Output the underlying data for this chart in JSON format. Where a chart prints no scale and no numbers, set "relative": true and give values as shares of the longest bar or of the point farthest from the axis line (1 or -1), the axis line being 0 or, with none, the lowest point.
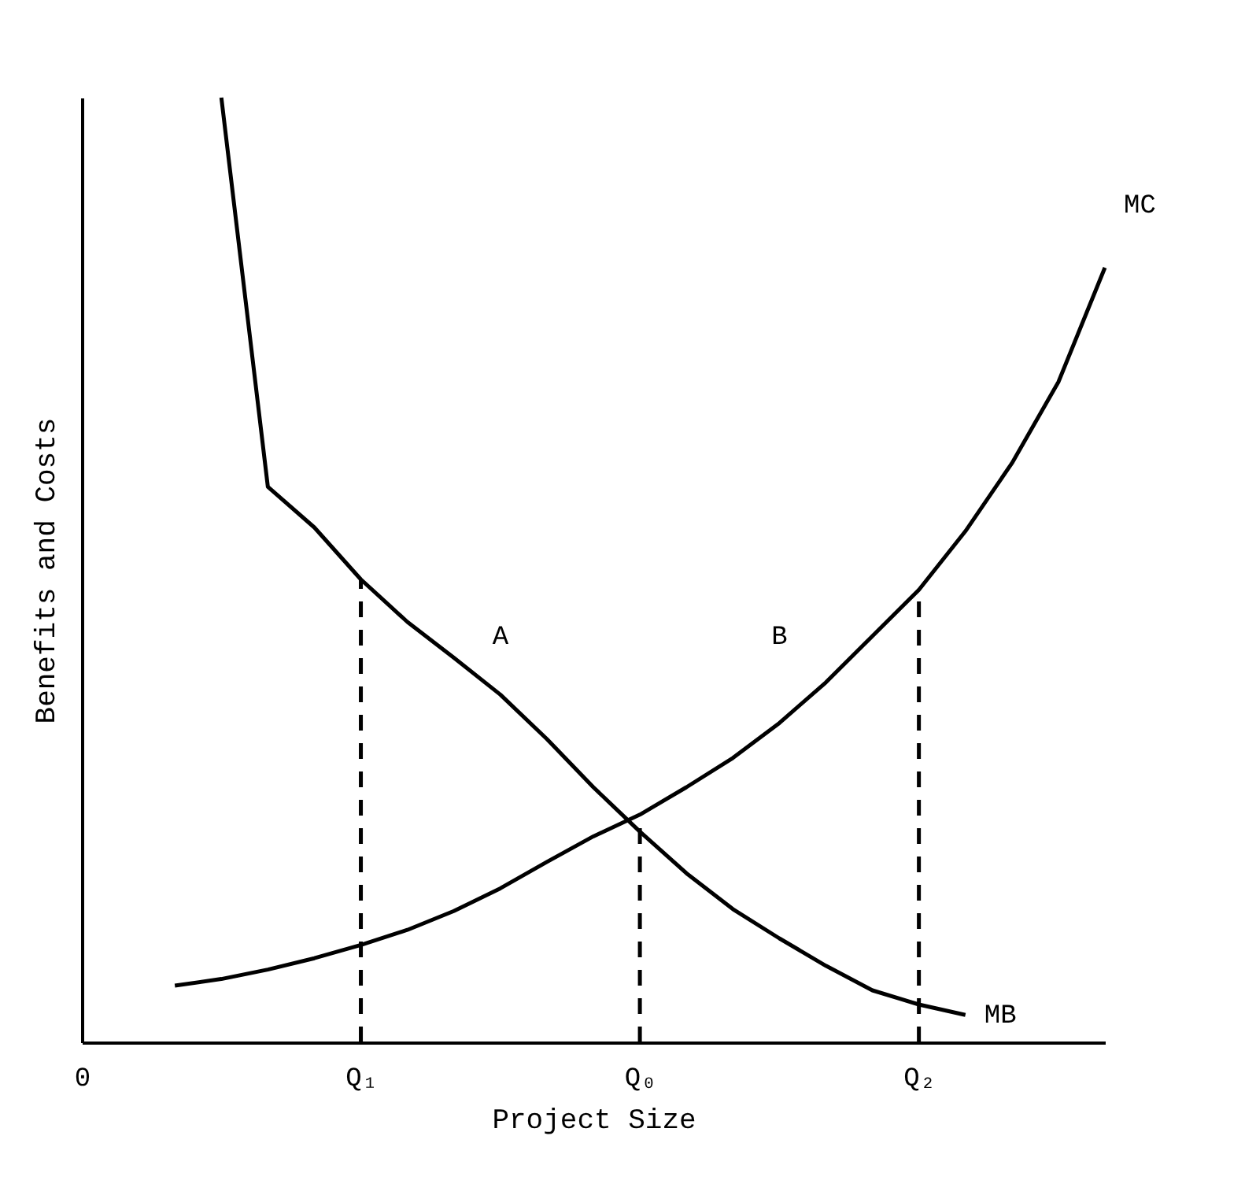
{
  "chart_data": {
    "type": "line",
    "relative": true,
    "xlabel": "Project Size",
    "ylabel": "Benefits and Costs",
    "categories": [
      "0",
      null,
      null,
      null,
      null,
      null,
      "Q₁",
      null,
      null,
      null,
      null,
      null,
      "Q₀",
      null,
      null,
      null,
      null,
      null,
      "Q₂",
      null,
      null,
      null,
      null
    ],
    "tick_labels": "x",
    "series": [
      {
        "name": "MB",
        "color": "#000000",
        "values": [
          null,
          null,
          null,
          1.0,
          0.588,
          0.545,
          0.49,
          0.445,
          0.407,
          0.368,
          0.321,
          0.27,
          0.223,
          0.179,
          0.141,
          0.11,
          0.081,
          0.055,
          0.04,
          0.029,
          null,
          null,
          null
        ]
      },
      {
        "name": "MC",
        "color": "#000000",
        "values": [
          null,
          null,
          0.06,
          0.067,
          0.077,
          0.089,
          0.103,
          0.119,
          0.139,
          0.163,
          0.191,
          0.218,
          0.241,
          0.27,
          0.301,
          0.338,
          0.381,
          0.43,
          0.479,
          0.541,
          0.613,
          0.699,
          0.82
        ]
      }
    ],
    "ref_lines": [
      {
        "axis": "x",
        "value": "Q₁",
        "line_style": "dashed"
      },
      {
        "axis": "x",
        "value": "Q₀",
        "line_style": "dashed"
      },
      {
        "axis": "x",
        "value": "Q₂",
        "line_style": "dashed"
      }
    ],
    "annotations": [
      "A",
      "B"
    ]
  }
}
